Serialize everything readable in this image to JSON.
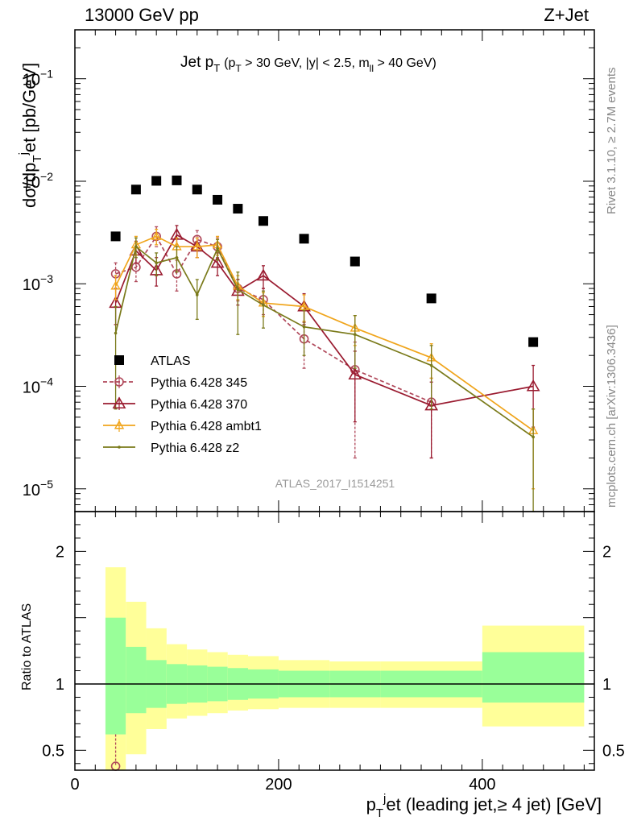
{
  "header": {
    "left": "13000 GeV pp",
    "right": "Z+Jet"
  },
  "side_text": {
    "rivet": "Rivet 3.1.10, ≥ 2.7M events",
    "mcplots": "mcplots.cern.ch [arXiv:1306.3436]"
  },
  "plot_title": {
    "main": "Jet p",
    "main_sub": "T",
    "cuts_a": "(p",
    "cuts_a_sub": "T",
    "cuts_b": " > 30 GeV, |y| < 2.5, m",
    "cuts_b_sub": "ll",
    "cuts_c": " > 40 GeV)"
  },
  "watermark": "ATLAS_2017_I1514251",
  "y_label": {
    "part1": "dσ/dp",
    "sub": "T",
    "sup": "j",
    "part2": "et [pb/GeV]"
  },
  "ratio_ylabel": "Ratio to ATLAS",
  "x_label": {
    "p": "p",
    "sub": "T",
    "sup": "j",
    "rest": "et (leading jet,≥ 4 jet) [GeV]"
  },
  "colors": {
    "atlas": "#000000",
    "p345": "#b0485a",
    "p370": "#9a1b30",
    "ambt1": "#f0a51c",
    "z2": "#7a7a1a",
    "band_inner": "#99ff99",
    "band_outer": "#ffff99"
  },
  "chart_data": [
    {
      "type": "scatter",
      "name": "main",
      "xlim": [
        0,
        510
      ],
      "ylim": [
        6e-06,
        0.3
      ],
      "log_y": true,
      "x_ticks": [
        0,
        200,
        400
      ],
      "y_tick_labels": [
        {
          "value": 1e-05,
          "mant": "10",
          "exp": "−5"
        },
        {
          "value": 0.0001,
          "mant": "10",
          "exp": "−4"
        },
        {
          "value": 0.001,
          "mant": "10",
          "exp": "−3"
        },
        {
          "value": 0.01,
          "mant": "10",
          "exp": "−2"
        },
        {
          "value": 0.1,
          "mant": "10",
          "exp": "−1"
        }
      ],
      "legend_position": "lower-left",
      "series": [
        {
          "name": "ATLAS",
          "key": "atlas",
          "marker": "square",
          "x": [
            40,
            60,
            80,
            100,
            120,
            140,
            160,
            185,
            225,
            275,
            350,
            450
          ],
          "y": [
            0.0029,
            0.0083,
            0.0101,
            0.0102,
            0.0083,
            0.0066,
            0.0054,
            0.0041,
            0.00275,
            0.00165,
            0.00072,
            0.00027
          ]
        },
        {
          "name": "Pythia 6.428 345",
          "key": "p345",
          "marker": "circle",
          "dashed": true,
          "x": [
            40,
            60,
            80,
            100,
            120,
            140,
            160,
            185,
            225,
            275,
            350
          ],
          "y": [
            0.00125,
            0.00145,
            0.0029,
            0.00125,
            0.0027,
            0.0023,
            0.0009,
            0.0007,
            0.00029,
            0.000145,
            7e-05
          ],
          "y_lo": [
            0.0009,
            0.00105,
            0.0023,
            0.00085,
            0.0021,
            0.0018,
            0.00068,
            0.0005,
            0.00015,
            2e-05,
            2e-05
          ],
          "y_hi": [
            0.0016,
            0.0019,
            0.0036,
            0.0017,
            0.0033,
            0.0028,
            0.0011,
            0.0009,
            0.00042,
            0.00027,
            0.00012
          ]
        },
        {
          "name": "Pythia 6.428 370",
          "key": "p370",
          "marker": "triangle",
          "x": [
            40,
            60,
            80,
            100,
            120,
            140,
            160,
            185,
            225,
            275,
            350,
            450
          ],
          "y": [
            0.00065,
            0.0021,
            0.00135,
            0.003,
            0.0023,
            0.0016,
            0.00085,
            0.0012,
            0.0006,
            0.00013,
            6.5e-05,
            0.0001
          ],
          "y_lo": [
            0.0004,
            0.0016,
            0.00095,
            0.0024,
            0.0018,
            0.0012,
            0.00062,
            0.0009,
            0.0004,
            4.5e-05,
            2e-05,
            4e-05
          ],
          "y_hi": [
            0.0009,
            0.0026,
            0.0018,
            0.0037,
            0.0028,
            0.002,
            0.0011,
            0.0015,
            0.0008,
            0.00022,
            0.00011,
            0.00016
          ]
        },
        {
          "name": "Pythia 6.428 ambt1",
          "key": "ambt1",
          "marker": "triangle-small",
          "x": [
            40,
            60,
            80,
            100,
            120,
            140,
            160,
            185,
            225,
            275,
            350,
            450
          ],
          "y": [
            0.00095,
            0.0024,
            0.0029,
            0.0023,
            0.0023,
            0.0024,
            0.00095,
            0.00065,
            0.0006,
            0.00037,
            0.00019,
            3.7e-05
          ],
          "y_lo": [
            0.0007,
            0.0019,
            0.0024,
            0.0018,
            0.0018,
            0.0019,
            0.0007,
            0.00048,
            0.00043,
            0.00025,
            0.00012,
            1e-05
          ],
          "y_hi": [
            0.0012,
            0.0029,
            0.0034,
            0.0028,
            0.0028,
            0.0029,
            0.0012,
            0.00082,
            0.00078,
            0.00049,
            0.00026,
            6e-05
          ]
        },
        {
          "name": "Pythia 6.428 z2",
          "key": "z2",
          "marker": "dot",
          "x": [
            40,
            60,
            80,
            100,
            120,
            140,
            160,
            185,
            225,
            275,
            350,
            450
          ],
          "y": [
            0.00033,
            0.0023,
            0.0016,
            0.0018,
            0.00078,
            0.0022,
            0.00088,
            0.00062,
            0.00038,
            0.00032,
            0.00016,
            3.2e-05
          ],
          "y_lo": [
            6e-05,
            0.0018,
            0.0012,
            0.0013,
            0.00045,
            0.0017,
            0.00032,
            0.00037,
            0.0002,
            0.00015,
            6e-05,
            6e-06
          ],
          "y_hi": [
            0.0006,
            0.0028,
            0.002,
            0.0023,
            0.0011,
            0.0027,
            0.0013,
            0.00085,
            0.00055,
            0.00049,
            0.00025,
            6e-05
          ]
        }
      ]
    },
    {
      "type": "area",
      "name": "ratio",
      "xlim": [
        0,
        510
      ],
      "ylim": [
        0.35,
        2.3
      ],
      "x_ticks": [
        0,
        200,
        400
      ],
      "x_tick_labels": [
        "0",
        "200",
        "400"
      ],
      "y_ticks": [
        0.5,
        1,
        2
      ],
      "y_tick_labels": [
        "0.5",
        "1",
        "2"
      ],
      "bins": [
        {
          "x0": 30,
          "x1": 50,
          "inner": [
            0.62,
            1.5
          ],
          "outer": [
            0.35,
            1.88
          ]
        },
        {
          "x0": 50,
          "x1": 70,
          "inner": [
            0.78,
            1.28
          ],
          "outer": [
            0.47,
            1.62
          ]
        },
        {
          "x0": 70,
          "x1": 90,
          "inner": [
            0.82,
            1.18
          ],
          "outer": [
            0.66,
            1.42
          ]
        },
        {
          "x0": 90,
          "x1": 110,
          "inner": [
            0.85,
            1.15
          ],
          "outer": [
            0.74,
            1.3
          ]
        },
        {
          "x0": 110,
          "x1": 130,
          "inner": [
            0.86,
            1.14
          ],
          "outer": [
            0.76,
            1.26
          ]
        },
        {
          "x0": 130,
          "x1": 150,
          "inner": [
            0.87,
            1.13
          ],
          "outer": [
            0.78,
            1.24
          ]
        },
        {
          "x0": 150,
          "x1": 170,
          "inner": [
            0.88,
            1.12
          ],
          "outer": [
            0.8,
            1.22
          ]
        },
        {
          "x0": 170,
          "x1": 200,
          "inner": [
            0.89,
            1.11
          ],
          "outer": [
            0.81,
            1.21
          ]
        },
        {
          "x0": 200,
          "x1": 250,
          "inner": [
            0.9,
            1.1
          ],
          "outer": [
            0.82,
            1.18
          ]
        },
        {
          "x0": 250,
          "x1": 300,
          "inner": [
            0.9,
            1.1
          ],
          "outer": [
            0.82,
            1.17
          ]
        },
        {
          "x0": 300,
          "x1": 400,
          "inner": [
            0.9,
            1.1
          ],
          "outer": [
            0.82,
            1.17
          ]
        },
        {
          "x0": 400,
          "x1": 500,
          "inner": [
            0.86,
            1.24
          ],
          "outer": [
            0.68,
            1.44
          ]
        }
      ],
      "points": [
        {
          "key": "p345",
          "x": 40,
          "y": 0.38,
          "y_hi": 0.62
        }
      ]
    }
  ]
}
